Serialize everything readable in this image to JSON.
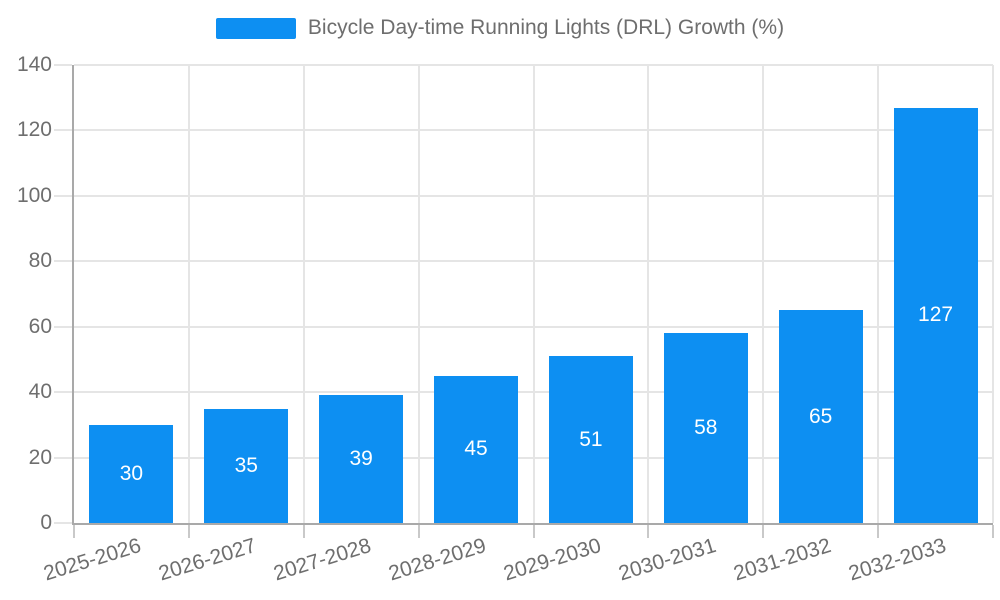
{
  "chart_data": {
    "type": "bar",
    "series_name": "Bicycle Day-time Running Lights (DRL) Growth (%)",
    "categories": [
      "2025-2026",
      "2026-2027",
      "2027-2028",
      "2028-2029",
      "2029-2030",
      "2030-2031",
      "2031-2032",
      "2032-2033"
    ],
    "values": [
      30,
      35,
      39,
      45,
      51,
      58,
      65,
      127
    ],
    "ylim": [
      0,
      140
    ],
    "yticks": [
      0,
      20,
      40,
      60,
      80,
      100,
      120,
      140
    ],
    "grid": true,
    "legend_position": "top-center",
    "value_labels": "inside-center",
    "colors": {
      "bar": "#0d8ff2",
      "bar_label": "#ffffff",
      "grid": "#e5e5e5",
      "axis": "#a9a9a9",
      "tick": "#c9c9c9",
      "text": "#6e6e6e"
    }
  }
}
